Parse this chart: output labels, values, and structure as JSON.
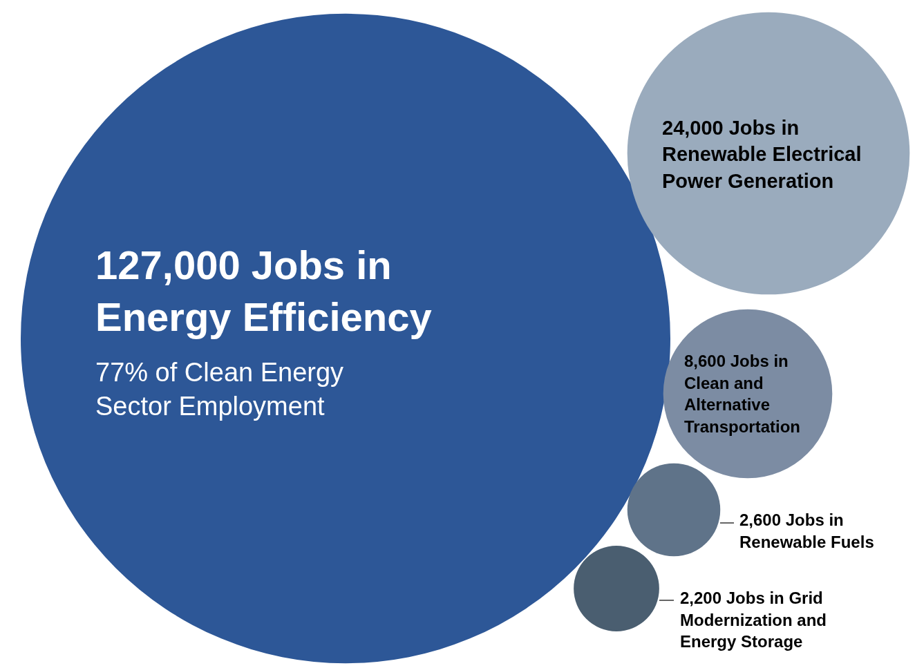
{
  "chart_data": {
    "type": "other",
    "categories": [
      "Jobs in\nEnergy Efficiency",
      "Jobs in\nRenewable Electrical\nPower Generation",
      "Jobs in\nClean and\nAlternative\nTransportation",
      "Jobs in\nRenewable Fuels",
      "Jobs in Grid\nModernization and\nEnergy Storage"
    ],
    "value_labels": [
      "127,000",
      "24,000",
      "8,600",
      "2,600",
      "2,200"
    ],
    "values": [
      127000,
      24000,
      8600,
      2600,
      2200
    ],
    "colors": [
      "#2d5797",
      "#9aabbd",
      "#7c8ca3",
      "#5f7389",
      "#4a5e70"
    ],
    "annotations": [
      "77% of Clean Energy\nSector Employment"
    ]
  }
}
